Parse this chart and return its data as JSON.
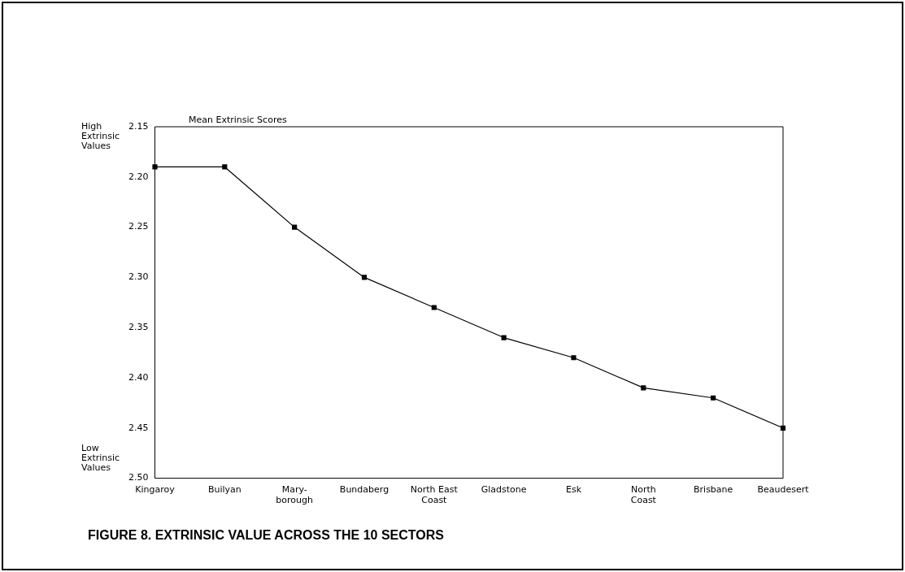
{
  "chart_data": {
    "type": "line",
    "title": "Mean Extrinsic Scores",
    "categories": [
      "Kingaroy",
      "Builyan",
      "Mary-\nborough",
      "Bundaberg",
      "North East\nCoast",
      "Gladstone",
      "Esk",
      "North\nCoast",
      "Brisbane",
      "Beaudesert"
    ],
    "series": [
      {
        "color": "#000000",
        "values": [
          2.19,
          2.19,
          2.25,
          2.3,
          2.33,
          2.36,
          2.38,
          2.41,
          2.42,
          2.45
        ]
      }
    ],
    "ylim": [
      2.5,
      2.15
    ],
    "yticks": [
      2.15,
      {
        "value": 2.2,
        "label": "2.20"
      },
      2.25,
      {
        "value": 2.3,
        "label": "2.30"
      },
      2.35,
      {
        "value": 2.4,
        "label": "2.40"
      },
      2.45,
      {
        "value": 2.5,
        "label": "2.50"
      }
    ],
    "grid": false,
    "legend": false,
    "marker": "square",
    "line_style": "solid",
    "annotations": [
      "High\nExtrinsic\nValues",
      "Low\nExtrinsic\nValues",
      "FIGURE 8. EXTRINSIC VALUE ACROSS THE 10 SECTORS"
    ]
  }
}
